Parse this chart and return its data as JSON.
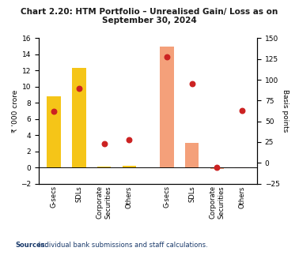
{
  "title": "Chart 2.20: HTM Portfolio – Unrealised Gain/ Loss as on\nSeptember 30, 2024",
  "psb_values": [
    8.8,
    12.3,
    0.15,
    0.2
  ],
  "pvb_values": [
    15.0,
    3.0,
    -0.2,
    -0.1
  ],
  "rhs_psb": [
    62,
    90,
    23,
    28
  ],
  "rhs_pvb": [
    128,
    95,
    -5,
    63
  ],
  "psb_color": "#F5C518",
  "pvb_color": "#F4A07A",
  "dot_color": "#CC2222",
  "ylim": [
    -2,
    16
  ],
  "rhs_ylim": [
    -25,
    150
  ],
  "yticks_left": [
    -2,
    0,
    2,
    4,
    6,
    8,
    10,
    12,
    14,
    16
  ],
  "yticks_right": [
    -25,
    0,
    25,
    50,
    75,
    100,
    125,
    150
  ],
  "ylabel_left": "₹ '000 crore",
  "ylabel_right": "Basis points",
  "source_bold": "Sources:",
  "source_rest": " Individual bank submissions and staff calculations.",
  "bar_width": 0.55,
  "figsize": [
    3.78,
    3.23
  ],
  "dpi": 100
}
